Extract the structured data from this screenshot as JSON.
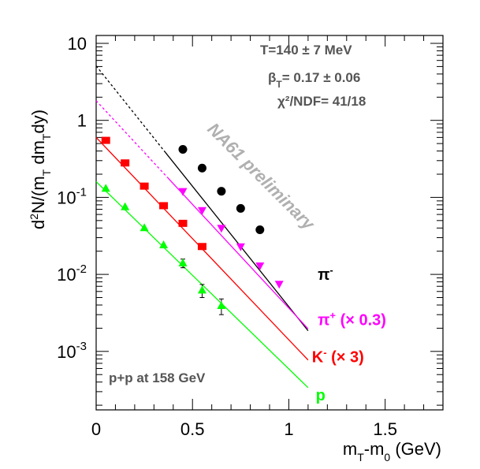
{
  "chart_data": {
    "type": "scatter",
    "xlabel": "m_T-m_0 (GeV)",
    "ylabel": "d²N/(m_T dm_T dy)",
    "xlim": [
      0,
      1.8
    ],
    "ylim": [
      0.0001,
      12
    ],
    "y_scale": "log",
    "grid": false,
    "x_ticks": [
      {
        "value": 0,
        "label": "0"
      },
      {
        "value": 0.5,
        "label": "0.5"
      },
      {
        "value": 1,
        "label": "1"
      },
      {
        "value": 1.5,
        "label": "1.5"
      }
    ],
    "y_ticks": [
      {
        "value": 10,
        "base": "10",
        "exp": ""
      },
      {
        "value": 1,
        "base": "1",
        "exp": ""
      },
      {
        "value": 0.1,
        "base": "10",
        "exp": "-1"
      },
      {
        "value": 0.01,
        "base": "10",
        "exp": "-2"
      },
      {
        "value": 0.001,
        "base": "10",
        "exp": "-3"
      }
    ],
    "annotations": {
      "temperature": "T=140 ± 7 MeV",
      "beta_prefix": "β",
      "beta_sub": "T",
      "beta_value": "= 0.17 ±  0.06",
      "chi2": "χ²/NDF= 41/18",
      "system": "p+p at 158 GeV",
      "preliminary": "NA61 preliminary"
    },
    "series": [
      {
        "name": "π⁻",
        "label_main": "π",
        "label_sup": "-",
        "label_suffix": "",
        "color": "#000000",
        "marker": "circle",
        "x": [
          0.45,
          0.55,
          0.65,
          0.75,
          0.85
        ],
        "y": [
          0.42,
          0.24,
          0.12,
          0.072,
          0.038
        ],
        "fit": {
          "y0": 5.1,
          "slope": -7.2,
          "x_start": 0.0,
          "x_solid": 0.36,
          "x_end": 1.1
        },
        "label_x": 1.15,
        "label_y": 0.0085
      },
      {
        "name": "π⁺ (× 0.3)",
        "label_main": "π",
        "label_sup": "+",
        "label_suffix": " (× 0.3)",
        "color": "#ff00ff",
        "marker": "triangle-down",
        "x": [
          0.45,
          0.55,
          0.65,
          0.75,
          0.85,
          0.95
        ],
        "y": [
          0.12,
          0.068,
          0.04,
          0.023,
          0.013,
          0.0075
        ],
        "fit": {
          "y0": 1.8,
          "slope": -6.2,
          "x_start": 0.0,
          "x_solid": 0.37,
          "x_end": 1.1
        },
        "label_x": 1.15,
        "label_y": 0.0022
      },
      {
        "name": "K⁻ (× 3)",
        "label_main": "K",
        "label_sup": "-",
        "label_suffix": " (× 3)",
        "color": "#ff0000",
        "marker": "square",
        "x": [
          0.05,
          0.15,
          0.25,
          0.35,
          0.45,
          0.55
        ],
        "y": [
          0.55,
          0.28,
          0.14,
          0.078,
          0.046,
          0.023
        ],
        "fit": {
          "y0": 0.6,
          "slope": -6.05,
          "x_start": 0.0,
          "x_solid": 0.0,
          "x_end": 1.1
        },
        "label_x": 1.12,
        "label_y": 0.00072
      },
      {
        "name": "p",
        "label_main": "p",
        "label_sup": "",
        "label_suffix": "",
        "color": "#00ff00",
        "marker": "triangle-up",
        "x": [
          0.05,
          0.15,
          0.25,
          0.35,
          0.45,
          0.55,
          0.65
        ],
        "y": [
          0.13,
          0.075,
          0.04,
          0.024,
          0.014,
          0.0062,
          0.0039
        ],
        "y_err": [
          0,
          0,
          0,
          0,
          0.0018,
          0.0012,
          0.0009
        ],
        "fit": {
          "y0": 0.16,
          "slope": -5.6,
          "x_start": 0.0,
          "x_solid": 0.0,
          "x_end": 1.1
        },
        "label_x": 1.14,
        "label_y": 0.00023
      }
    ]
  }
}
